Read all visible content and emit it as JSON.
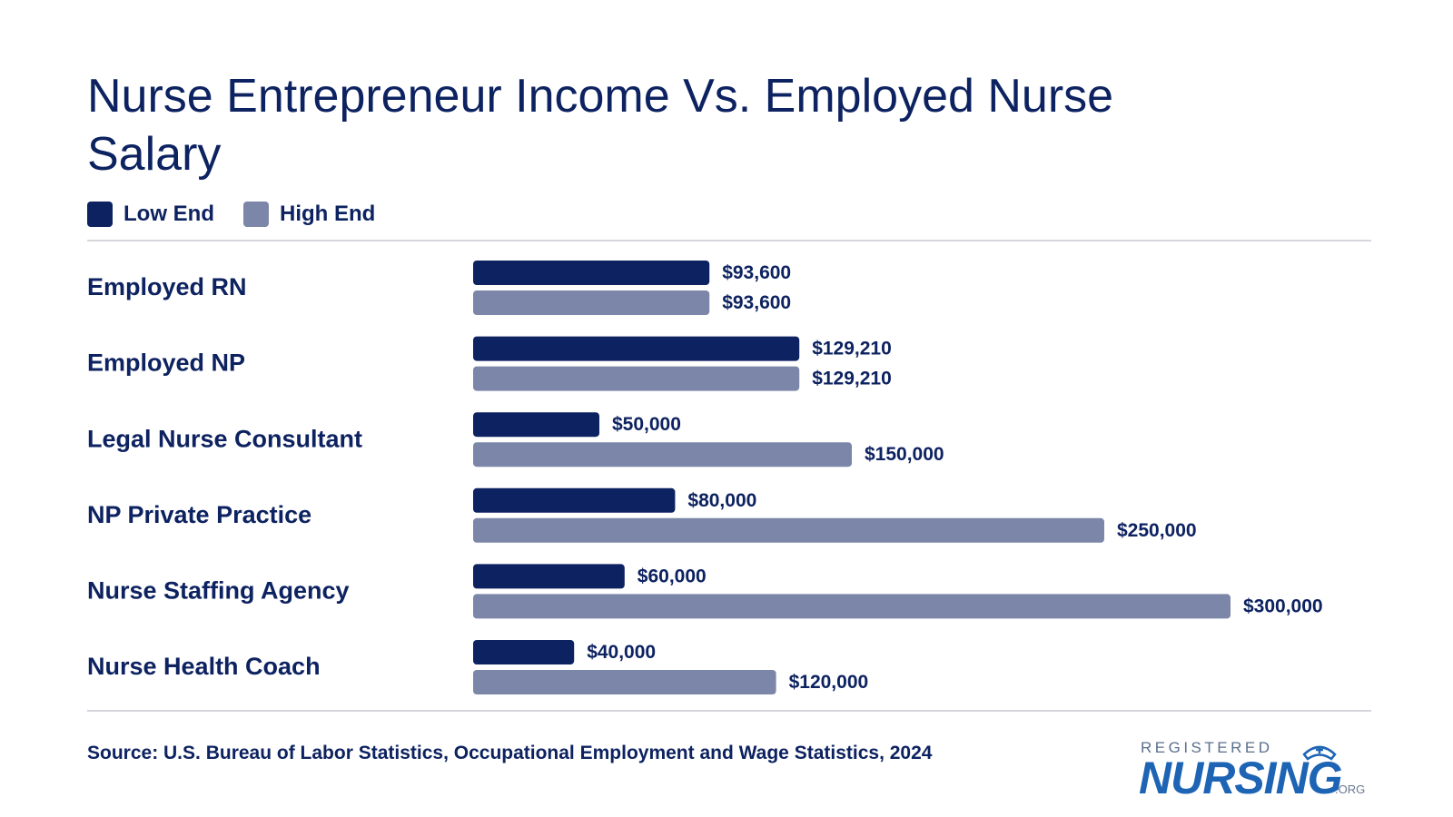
{
  "title": "Nurse Entrepreneur Income Vs. Employed Nurse Salary",
  "legend": {
    "low_label": "Low End",
    "high_label": "High End"
  },
  "colors": {
    "low": "#0d2260",
    "high": "#7b86a8",
    "text": "#0d2260"
  },
  "chart_data": {
    "type": "bar",
    "orientation": "horizontal",
    "categories": [
      "Employed RN",
      "Employed NP",
      "Legal Nurse Consultant",
      "NP Private Practice",
      "Nurse Staffing Agency",
      "Nurse Health Coach"
    ],
    "series": [
      {
        "name": "Low End",
        "values": [
          93600,
          129210,
          50000,
          80000,
          60000,
          40000
        ],
        "labels": [
          "$93,600",
          "$129,210",
          "$50,000",
          "$80,000",
          "$60,000",
          "$40,000"
        ]
      },
      {
        "name": "High End",
        "values": [
          93600,
          129210,
          150000,
          250000,
          300000,
          120000
        ],
        "labels": [
          "$93,600",
          "$129,210",
          "$150,000",
          "$250,000",
          "$300,000",
          "$120,000"
        ]
      }
    ],
    "xlim": [
      0,
      300000
    ],
    "grid": false,
    "legend_position": "top-left"
  },
  "source": "Source: U.S. Bureau of Labor Statistics, Occupational Employment and Wage Statistics, 2024",
  "logo": {
    "line1": "REGISTERED",
    "line2": "NURSING",
    "suffix": ".ORG"
  }
}
